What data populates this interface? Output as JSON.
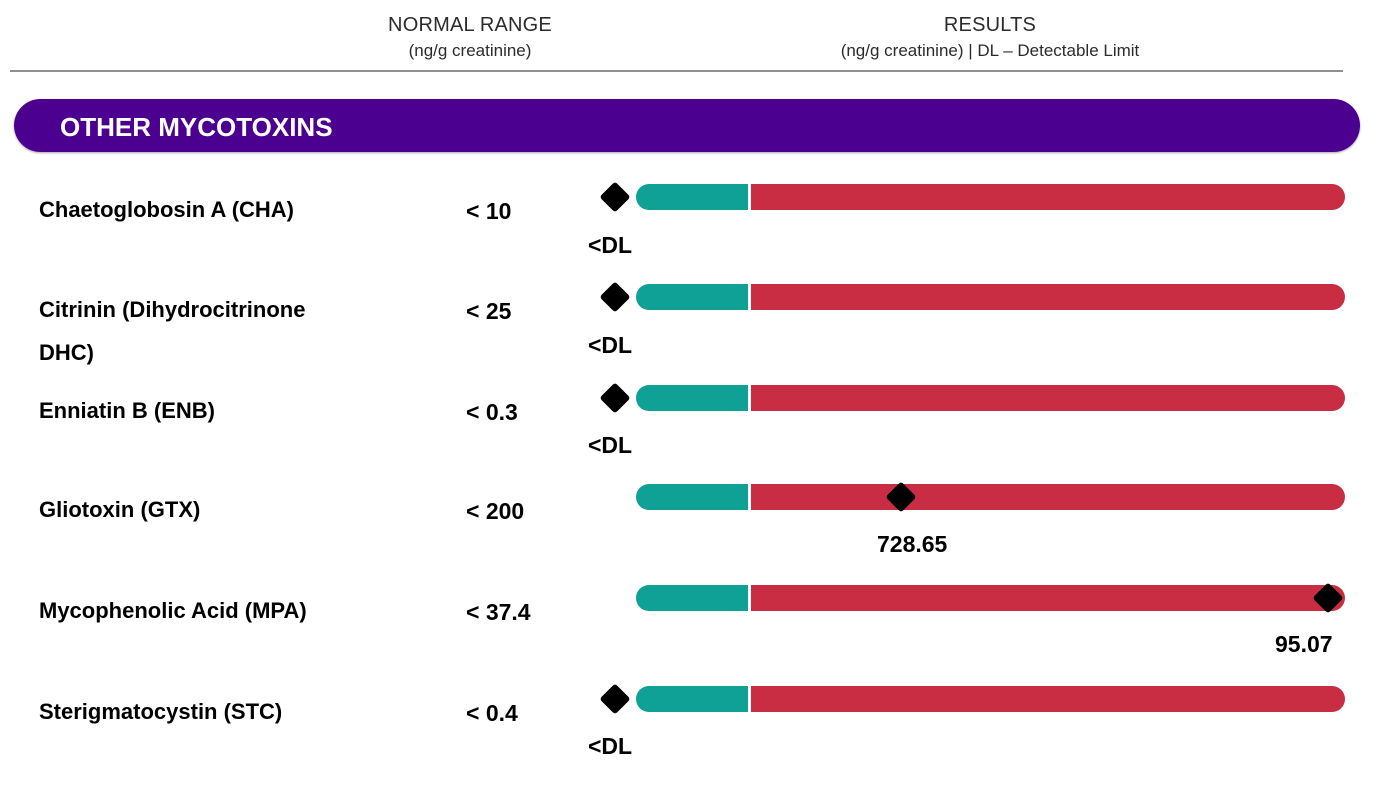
{
  "header": {
    "normal_range_title": "NORMAL RANGE",
    "normal_range_unit": "(ng/g creatinine)",
    "results_title": "RESULTS",
    "results_unit": "(ng/g creatinine) | DL – Detectable Limit"
  },
  "section": {
    "title": "OTHER MYCOTOXINS"
  },
  "rows": [
    {
      "name": "Chaetoglobosin A (CHA)",
      "range": "< 10",
      "result": "<DL"
    },
    {
      "name": "Citrinin (Dihydrocitrinone DHC)",
      "range": "< 25",
      "result": "<DL"
    },
    {
      "name": "Enniatin B (ENB)",
      "range": "< 0.3",
      "result": "<DL"
    },
    {
      "name": "Gliotoxin (GTX)",
      "range": "< 200",
      "result": "728.65"
    },
    {
      "name": "Mycophenolic Acid (MPA)",
      "range": "< 37.4",
      "result": "95.07"
    },
    {
      "name": "Sterigmatocystin (STC)",
      "range": "< 0.4",
      "result": "<DL"
    }
  ],
  "colors": {
    "banner": "#4b0090",
    "normal_bar": "#0fa195",
    "high_bar": "#c92d43",
    "marker": "#000000"
  }
}
